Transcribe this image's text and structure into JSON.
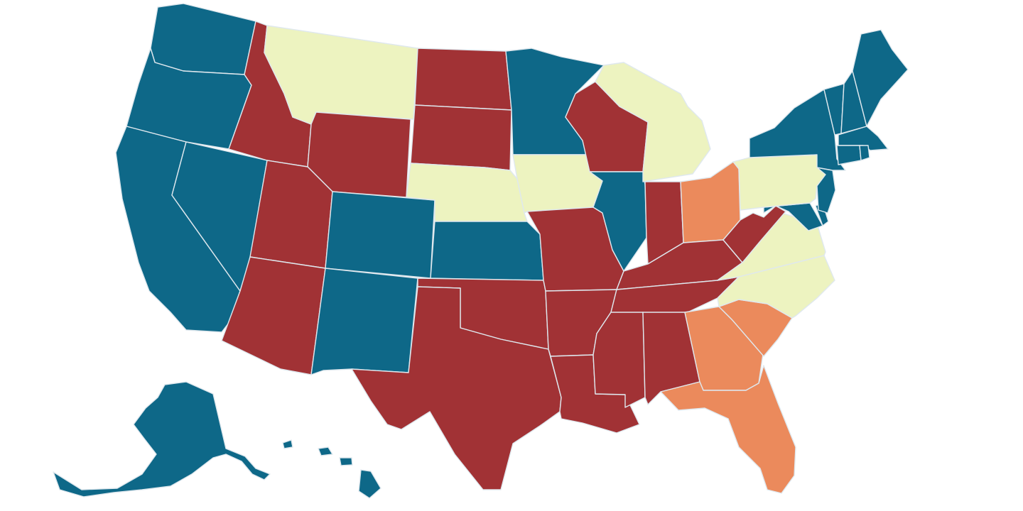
{
  "map": {
    "type": "choropleth",
    "region": "United States",
    "categories": [
      {
        "key": "blue",
        "color": "#0e6888"
      },
      {
        "key": "red",
        "color": "#a13235"
      },
      {
        "key": "yellow",
        "color": "#edf3c0"
      },
      {
        "key": "orange",
        "color": "#eb8a5c"
      }
    ],
    "states": {
      "WA": "blue",
      "OR": "blue",
      "CA": "blue",
      "NV": "blue",
      "CO": "blue",
      "NM": "blue",
      "KS": "blue",
      "MN": "blue",
      "IL": "blue",
      "NY": "blue",
      "VT": "blue",
      "NH": "blue",
      "ME": "blue",
      "MA": "blue",
      "RI": "blue",
      "CT": "blue",
      "NJ": "blue",
      "DE": "blue",
      "MD": "blue",
      "AK": "blue",
      "HI": "blue",
      "ID": "red",
      "WY": "red",
      "UT": "red",
      "AZ": "red",
      "ND": "red",
      "SD": "red",
      "WI": "red",
      "IN": "red",
      "MO": "red",
      "OK": "red",
      "TX": "red",
      "AR": "red",
      "LA": "red",
      "MS": "red",
      "AL": "red",
      "TN": "red",
      "KY": "red",
      "WV": "red",
      "MT": "yellow",
      "NE": "yellow",
      "IA": "yellow",
      "MI": "yellow",
      "PA": "yellow",
      "VA": "yellow",
      "NC": "yellow",
      "OH": "orange",
      "GA": "orange",
      "SC": "orange",
      "FL": "orange"
    }
  }
}
